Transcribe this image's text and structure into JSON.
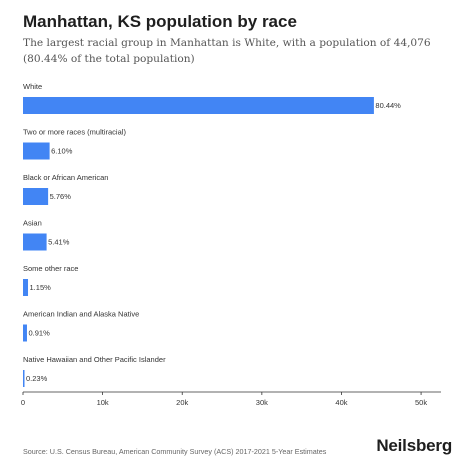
{
  "header": {
    "title": "Manhattan, KS population by race",
    "subtitle": "The largest racial group in Manhattan is White, with a population of 44,076 (80.44% of the total population)"
  },
  "footer": {
    "source": "Source: U.S. Census Bureau, American Community Survey (ACS) 2017-2021 5-Year Estimates",
    "brand": "Neilsberg"
  },
  "chart_data": {
    "type": "bar",
    "orientation": "horizontal",
    "categories": [
      "White",
      "Two or more races (multiracial)",
      "Black or African American",
      "Asian",
      "Some other race",
      "American Indian and Alaska Native",
      "Native Hawaiian and Other Pacific Islander"
    ],
    "values": [
      44076,
      3342,
      3156,
      2964,
      630,
      499,
      126
    ],
    "value_labels": [
      "80.44%",
      "6.10%",
      "5.76%",
      "5.41%",
      "1.15%",
      "0.91%",
      "0.23%"
    ],
    "xlim": [
      0,
      52000
    ],
    "xticks": [
      0,
      10000,
      20000,
      30000,
      40000,
      50000
    ],
    "xtick_labels": [
      "0",
      "10k",
      "20k",
      "30k",
      "40k",
      "50k"
    ],
    "bar_color": "#4285f4",
    "grid": false
  }
}
